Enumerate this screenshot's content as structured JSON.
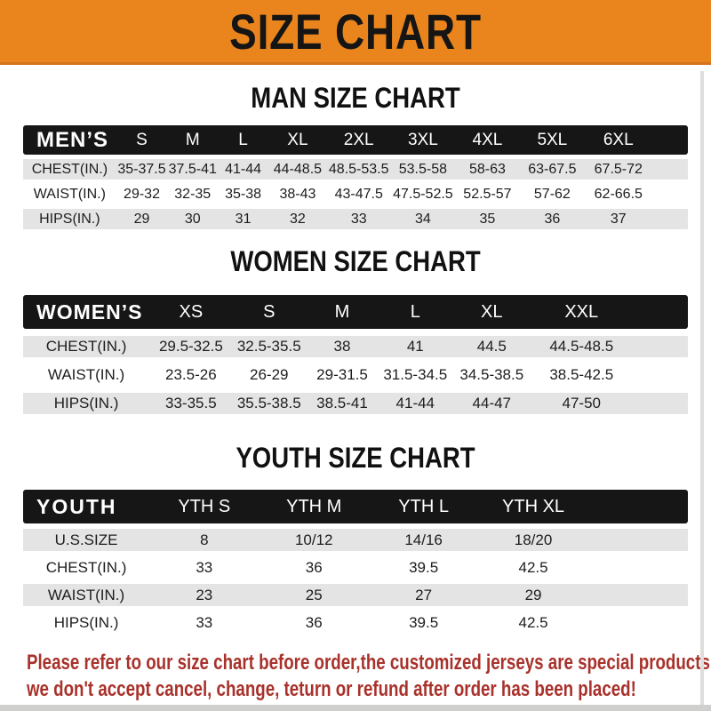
{
  "banner": {
    "title": "SIZE CHART",
    "bg_color": "#ea851d",
    "text_color": "#151515"
  },
  "chart_data": [
    {
      "type": "table",
      "id": "men",
      "title": "MAN SIZE CHART",
      "group_label": "MEN’S",
      "columns": [
        "S",
        "M",
        "L",
        "XL",
        "2XL",
        "3XL",
        "4XL",
        "5XL",
        "6XL"
      ],
      "rows": [
        {
          "label": "CHEST(IN.)",
          "values": [
            "35-37.5",
            "37.5-41",
            "41-44",
            "44-48.5",
            "48.5-53.5",
            "53.5-58",
            "58-63",
            "63-67.5",
            "67.5-72"
          ]
        },
        {
          "label": "WAIST(IN.)",
          "values": [
            "29-32",
            "32-35",
            "35-38",
            "38-43",
            "43-47.5",
            "47.5-52.5",
            "52.5-57",
            "57-62",
            "62-66.5"
          ]
        },
        {
          "label": "HIPS(IN.)",
          "values": [
            "29",
            "30",
            "31",
            "32",
            "33",
            "34",
            "35",
            "36",
            "37"
          ]
        }
      ]
    },
    {
      "type": "table",
      "id": "women",
      "title": "WOMEN SIZE CHART",
      "group_label": "WOMEN’S",
      "columns": [
        "XS",
        "S",
        "M",
        "L",
        "XL",
        "XXL"
      ],
      "rows": [
        {
          "label": "CHEST(IN.)",
          "values": [
            "29.5-32.5",
            "32.5-35.5",
            "38",
            "41",
            "44.5",
            "44.5-48.5"
          ]
        },
        {
          "label": "WAIST(IN.)",
          "values": [
            "23.5-26",
            "26-29",
            "29-31.5",
            "31.5-34.5",
            "34.5-38.5",
            "38.5-42.5"
          ]
        },
        {
          "label": "HIPS(IN.)",
          "values": [
            "33-35.5",
            "35.5-38.5",
            "38.5-41",
            "41-44",
            "44-47",
            "47-50"
          ]
        }
      ]
    },
    {
      "type": "table",
      "id": "youth",
      "title": "YOUTH SIZE CHART",
      "group_label": "YOUTH",
      "columns": [
        "YTH S",
        "YTH M",
        "YTH L",
        "YTH XL"
      ],
      "rows": [
        {
          "label": "U.S.SIZE",
          "values": [
            "8",
            "10/12",
            "14/16",
            "18/20"
          ]
        },
        {
          "label": "CHEST(IN.)",
          "values": [
            "33",
            "36",
            "39.5",
            "42.5"
          ]
        },
        {
          "label": "WAIST(IN.)",
          "values": [
            "23",
            "25",
            "27",
            "29"
          ]
        },
        {
          "label": "HIPS(IN.)",
          "values": [
            "33",
            "36",
            "39.5",
            "42.5"
          ]
        }
      ]
    }
  ],
  "disclaimer": {
    "line1": "Please refer to our size chart before order,the customized jerseys are special products,",
    "line2": "we don't accept cancel, change, teturn or refund after order has been placed!",
    "color": "#a8322b"
  }
}
